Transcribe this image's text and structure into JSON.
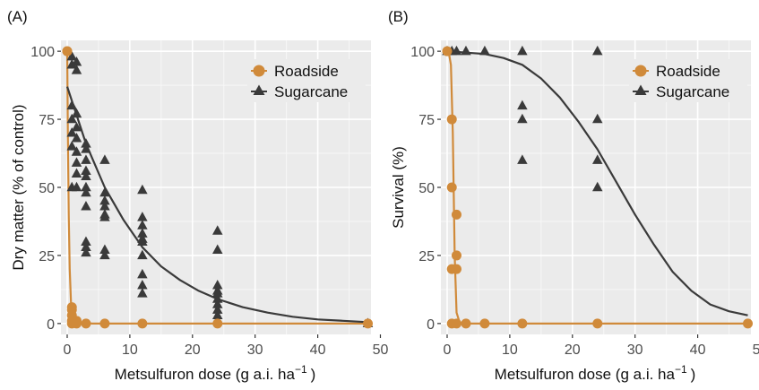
{
  "figure": {
    "panels": [
      {
        "label": "(A)",
        "xlabel_main": "Metsulfuron dose (g a.i. ha",
        "xlabel_sup": "−1",
        "xlabel_end": ")",
        "ylabel": "Dry matter (% of control)"
      },
      {
        "label": "(B)",
        "xlabel_main": "Metsulfuron dose (g a.i. ha",
        "xlabel_sup": "−1",
        "xlabel_end": ")",
        "ylabel": "Survival (%)"
      }
    ]
  },
  "colors": {
    "roadside": "#D08A3A",
    "sugarcane": "#3A3A3A",
    "panel_bg": "#EBEBEB",
    "grid": "#FFFFFF"
  },
  "chart_data": [
    {
      "type": "scatter",
      "panel": "A",
      "xlabel": "Metsulfuron dose (g a.i. ha−1 )",
      "ylabel": "Dry matter (% of control)",
      "xlim": [
        -1,
        48.5
      ],
      "ylim": [
        -4,
        104
      ],
      "xticks": [
        0,
        10,
        20,
        30,
        40,
        50
      ],
      "yticks": [
        0,
        25,
        50,
        75,
        100
      ],
      "grid": true,
      "legend": "top-right",
      "series": [
        {
          "name": "Roadside",
          "marker": "circle",
          "points": [
            [
              0,
              100
            ],
            [
              0,
              100
            ],
            [
              0.75,
              6
            ],
            [
              0.75,
              5
            ],
            [
              0.75,
              3
            ],
            [
              0.75,
              1
            ],
            [
              0.75,
              0
            ],
            [
              1.5,
              1
            ],
            [
              1.5,
              0
            ],
            [
              3,
              0
            ],
            [
              6,
              0
            ],
            [
              12,
              0
            ],
            [
              24,
              0
            ],
            [
              48,
              0
            ]
          ],
          "fit": [
            [
              0,
              100
            ],
            [
              0.1,
              70
            ],
            [
              0.25,
              40
            ],
            [
              0.4,
              20
            ],
            [
              0.6,
              8
            ],
            [
              0.9,
              3
            ],
            [
              1.3,
              1
            ],
            [
              2,
              0.3
            ],
            [
              4,
              0
            ],
            [
              48,
              0
            ]
          ]
        },
        {
          "name": "Sugarcane",
          "marker": "triangle",
          "points": [
            [
              0.75,
              98
            ],
            [
              0.75,
              95
            ],
            [
              0.75,
              80
            ],
            [
              0.75,
              75
            ],
            [
              0.75,
              70
            ],
            [
              0.75,
              65
            ],
            [
              0.75,
              50
            ],
            [
              1.5,
              96
            ],
            [
              1.5,
              93
            ],
            [
              1.5,
              77
            ],
            [
              1.5,
              72
            ],
            [
              1.5,
              68
            ],
            [
              1.5,
              63
            ],
            [
              1.5,
              59
            ],
            [
              1.5,
              55
            ],
            [
              1.5,
              50
            ],
            [
              3,
              66
            ],
            [
              3,
              64
            ],
            [
              3,
              60
            ],
            [
              3,
              56
            ],
            [
              3,
              54
            ],
            [
              3,
              50
            ],
            [
              3,
              48
            ],
            [
              3,
              43
            ],
            [
              3,
              30
            ],
            [
              3,
              28
            ],
            [
              3,
              26
            ],
            [
              6,
              60
            ],
            [
              6,
              48
            ],
            [
              6,
              45
            ],
            [
              6,
              43
            ],
            [
              6,
              40
            ],
            [
              6,
              39
            ],
            [
              6,
              27
            ],
            [
              6,
              25
            ],
            [
              12,
              49
            ],
            [
              12,
              39
            ],
            [
              12,
              36
            ],
            [
              12,
              33
            ],
            [
              12,
              31
            ],
            [
              12,
              30
            ],
            [
              12,
              25
            ],
            [
              12,
              18
            ],
            [
              12,
              14
            ],
            [
              12,
              11
            ],
            [
              24,
              34
            ],
            [
              24,
              27
            ],
            [
              24,
              14
            ],
            [
              24,
              12
            ],
            [
              24,
              11
            ],
            [
              24,
              9
            ],
            [
              24,
              7
            ],
            [
              24,
              5
            ],
            [
              24,
              3
            ],
            [
              48,
              0
            ]
          ],
          "fit": [
            [
              0,
              87
            ],
            [
              3,
              66
            ],
            [
              6,
              50
            ],
            [
              9,
              38
            ],
            [
              12,
              28
            ],
            [
              15,
              21
            ],
            [
              18,
              16
            ],
            [
              21,
              12
            ],
            [
              24,
              9
            ],
            [
              28,
              6
            ],
            [
              32,
              4
            ],
            [
              36,
              2.5
            ],
            [
              40,
              1.5
            ],
            [
              44,
              1
            ],
            [
              48,
              0.5
            ]
          ]
        }
      ]
    },
    {
      "type": "scatter",
      "panel": "B",
      "xlabel": "Metsulfuron dose (g a.i. ha−1 )",
      "ylabel": "Survival (%)",
      "xlim": [
        -1,
        48.5
      ],
      "ylim": [
        -4,
        104
      ],
      "xticks": [
        0,
        10,
        20,
        30,
        40,
        50
      ],
      "yticks": [
        0,
        25,
        50,
        75,
        100
      ],
      "grid": true,
      "legend": "top-right",
      "series": [
        {
          "name": "Roadside",
          "marker": "circle",
          "points": [
            [
              0,
              100
            ],
            [
              0.75,
              75
            ],
            [
              0.75,
              50
            ],
            [
              0.75,
              20
            ],
            [
              0.75,
              0
            ],
            [
              1.5,
              40
            ],
            [
              1.5,
              25
            ],
            [
              1.5,
              20
            ],
            [
              1.5,
              0
            ],
            [
              3,
              0
            ],
            [
              6,
              0
            ],
            [
              12,
              0
            ],
            [
              24,
              0
            ],
            [
              48,
              0
            ]
          ],
          "fit": [
            [
              0,
              100
            ],
            [
              0.3,
              99
            ],
            [
              0.6,
              95
            ],
            [
              0.9,
              70
            ],
            [
              1.2,
              25
            ],
            [
              1.5,
              4
            ],
            [
              2,
              0.3
            ],
            [
              3,
              0
            ],
            [
              48,
              0
            ]
          ]
        },
        {
          "name": "Sugarcane",
          "marker": "triangle",
          "points": [
            [
              0,
              100
            ],
            [
              0.75,
              100
            ],
            [
              1.5,
              100
            ],
            [
              3,
              100
            ],
            [
              6,
              100
            ],
            [
              12,
              100
            ],
            [
              12,
              80
            ],
            [
              12,
              75
            ],
            [
              12,
              60
            ],
            [
              24,
              100
            ],
            [
              24,
              75
            ],
            [
              24,
              60
            ],
            [
              24,
              50
            ]
          ],
          "fit": [
            [
              0,
              100
            ],
            [
              3,
              99.5
            ],
            [
              6,
              99
            ],
            [
              9,
              97.5
            ],
            [
              12,
              95
            ],
            [
              15,
              90
            ],
            [
              18,
              83
            ],
            [
              21,
              74
            ],
            [
              24,
              64
            ],
            [
              27,
              52
            ],
            [
              30,
              40
            ],
            [
              33,
              29
            ],
            [
              36,
              19
            ],
            [
              39,
              12
            ],
            [
              42,
              7
            ],
            [
              45,
              4.5
            ],
            [
              48,
              3
            ]
          ]
        }
      ]
    }
  ]
}
